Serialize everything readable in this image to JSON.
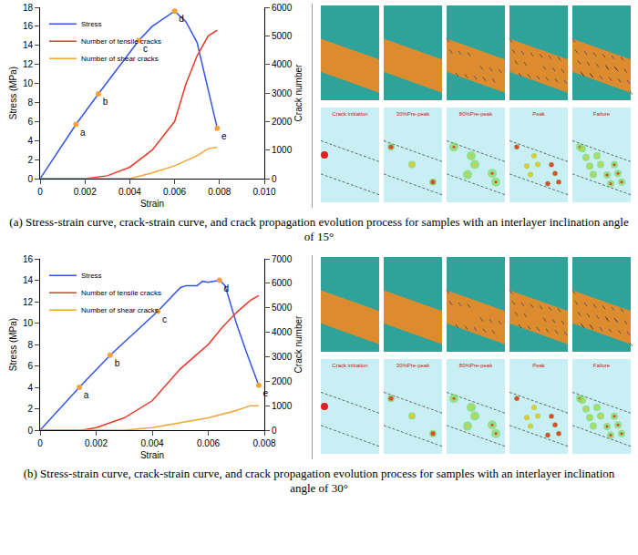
{
  "chart_data": [
    {
      "type": "line",
      "caption": "(a) Stress-strain curve, crack-strain curve, and crack propagation evolution process for samples with an interlayer inclination angle of 15°",
      "x_label": "Strain",
      "y_label": "Stress (MPa)",
      "y2_label": "Crack number",
      "xlim": [
        0,
        0.01
      ],
      "xticks": [
        0,
        0.002,
        0.004,
        0.006,
        0.008,
        {
          "value": 0.01,
          "label": "0.010"
        }
      ],
      "ylim": [
        0,
        18
      ],
      "yticks": [
        0,
        2,
        4,
        6,
        8,
        10,
        12,
        14,
        16,
        18
      ],
      "y2lim": [
        0,
        6000
      ],
      "y2ticks": [
        0,
        1000,
        2000,
        3000,
        4000,
        5000,
        6000
      ],
      "legend": "top-left",
      "series": [
        {
          "name": "Stress",
          "color": "#3355ee",
          "axis": "y",
          "x": [
            0,
            0.0016,
            0.0026,
            0.0044,
            0.005,
            0.0055,
            0.0058,
            0.006,
            0.0065,
            0.007,
            0.0079
          ],
          "values": [
            0,
            5.7,
            8.9,
            14.5,
            16.0,
            16.8,
            17.3,
            17.6,
            16.5,
            14.3,
            5.3
          ]
        },
        {
          "name": "Number of tensile cracks",
          "color": "#e8392a",
          "axis": "y2",
          "x": [
            0,
            0.002,
            0.003,
            0.004,
            0.005,
            0.0055,
            0.006,
            0.0065,
            0.007,
            0.0075,
            0.0079
          ],
          "values": [
            0,
            0,
            100,
            400,
            1000,
            1500,
            2000,
            3300,
            4300,
            5000,
            5200
          ]
        },
        {
          "name": "Number of shear cracks",
          "color": "#f5a43a",
          "axis": "y2",
          "x": [
            0,
            0.004,
            0.005,
            0.006,
            0.007,
            0.0075,
            0.0079
          ],
          "values": [
            0,
            0,
            200,
            450,
            800,
            1050,
            1100
          ]
        }
      ],
      "points": {
        "color": "#f5a43a",
        "labels": [
          "a",
          "b",
          "c",
          "d",
          "e"
        ],
        "x": [
          0.0016,
          0.0026,
          0.0044,
          0.006,
          0.0079
        ],
        "y": [
          5.7,
          8.9,
          14.5,
          17.6,
          5.3
        ]
      },
      "panel_labels": [
        "Crack initiation",
        "30%Pre-peak",
        "80%Pre-peak",
        "Peak",
        "Failure"
      ]
    },
    {
      "type": "line",
      "caption": "(b) Stress-strain curve, crack-strain curve, and crack propagation evolution process for samples with an interlayer inclination angle of 30°",
      "x_label": "Strain",
      "y_label": "Stress (MPa)",
      "y2_label": "Crack number",
      "xlim": [
        0,
        0.008
      ],
      "xticks": [
        0,
        0.002,
        0.004,
        0.006,
        0.008
      ],
      "ylim": [
        0,
        16
      ],
      "yticks": [
        0,
        2,
        4,
        6,
        8,
        10,
        12,
        14,
        16
      ],
      "y2lim": [
        0,
        7000
      ],
      "y2ticks": [
        0,
        1000,
        2000,
        3000,
        4000,
        5000,
        6000,
        7000
      ],
      "legend": "top-left",
      "series": [
        {
          "name": "Stress",
          "color": "#3355ee",
          "axis": "y",
          "x": [
            0,
            0.0014,
            0.0025,
            0.0042,
            0.005,
            0.0052,
            0.0056,
            0.0058,
            0.006,
            0.0062,
            0.0064,
            0.0066,
            0.007,
            0.0074,
            0.0078
          ],
          "values": [
            0,
            4.0,
            7.0,
            11.1,
            13.3,
            13.5,
            13.5,
            13.9,
            13.8,
            13.9,
            14.0,
            13.5,
            10.0,
            7.0,
            4.2
          ]
        },
        {
          "name": "Number of tensile cracks",
          "color": "#e8392a",
          "axis": "y2",
          "x": [
            0,
            0.0015,
            0.002,
            0.003,
            0.004,
            0.005,
            0.0055,
            0.006,
            0.0065,
            0.007,
            0.0075,
            0.0078
          ],
          "values": [
            0,
            0,
            100,
            500,
            1200,
            2500,
            3000,
            3500,
            4200,
            4800,
            5300,
            5500
          ]
        },
        {
          "name": "Number of shear cracks",
          "color": "#f5a43a",
          "axis": "y2",
          "x": [
            0,
            0.003,
            0.004,
            0.005,
            0.006,
            0.007,
            0.0075,
            0.0078
          ],
          "values": [
            0,
            0,
            100,
            300,
            500,
            800,
            1000,
            1000
          ]
        }
      ],
      "points": {
        "color": "#f5a43a",
        "labels": [
          "a",
          "b",
          "c",
          "d",
          "e"
        ],
        "x": [
          0.0014,
          0.0025,
          0.0042,
          0.0064,
          0.0078
        ],
        "y": [
          4.0,
          7.0,
          11.1,
          14.0,
          4.2
        ]
      },
      "panel_labels": [
        "Crack initiation",
        "30%Pre-peak",
        "80%Pre-peak",
        "Peak",
        "Failure"
      ]
    }
  ]
}
